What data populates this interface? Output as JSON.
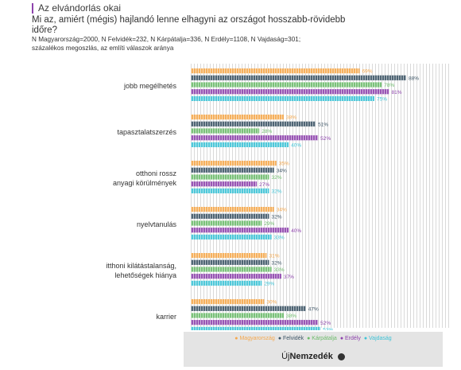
{
  "header": {
    "title": "Az elvándorlás okai",
    "question": "Mi az, amiért (mégis) hajlandó lenne elhagyni az országot hosszabb-rövidebb időre?",
    "note": "N Magyarország=2000, N Felvidék=232, N Kárpátalja=336, N Erdély=1108, N Vajdaság=301; százalékos megoszlás, az említi válaszok aránya"
  },
  "legend": {
    "items": [
      "Magyarország",
      "Felvidék",
      "Kárpátalja",
      "Erdély",
      "Vajdaság"
    ]
  },
  "logo": {
    "prefix": "Új",
    "name": "Nemzedék"
  },
  "colors": {
    "Magyarország": "#f5a84d",
    "Felvidék": "#3d5566",
    "Kárpátalja": "#6dbb6b",
    "Erdély": "#8e44ad",
    "Vajdaság": "#3ec3d6",
    "background_stripes": "#d9d9d9"
  },
  "chart_data": {
    "type": "bar",
    "orientation": "horizontal",
    "xlim": [
      0,
      100
    ],
    "categories": [
      "jobb megélhetés",
      "tapasztalatszerzés",
      "otthoni rossz anyagi körülmények",
      "nyelvtanulás",
      "itthoni kilátástalanság, lehetőségek hiánya",
      "karrier"
    ],
    "series": [
      {
        "name": "Magyarország",
        "values": [
          69,
          38,
          35,
          34,
          31,
          30
        ]
      },
      {
        "name": "Felvidék",
        "values": [
          88,
          51,
          34,
          32,
          32,
          47
        ]
      },
      {
        "name": "Kárpátalja",
        "values": [
          78,
          28,
          32,
          29,
          33,
          38
        ]
      },
      {
        "name": "Erdély",
        "values": [
          81,
          52,
          27,
          40,
          37,
          52
        ]
      },
      {
        "name": "Vajdaság",
        "values": [
          75,
          40,
          32,
          33,
          29,
          53
        ]
      }
    ],
    "value_suffix": "%",
    "legend_position": "bottom"
  }
}
